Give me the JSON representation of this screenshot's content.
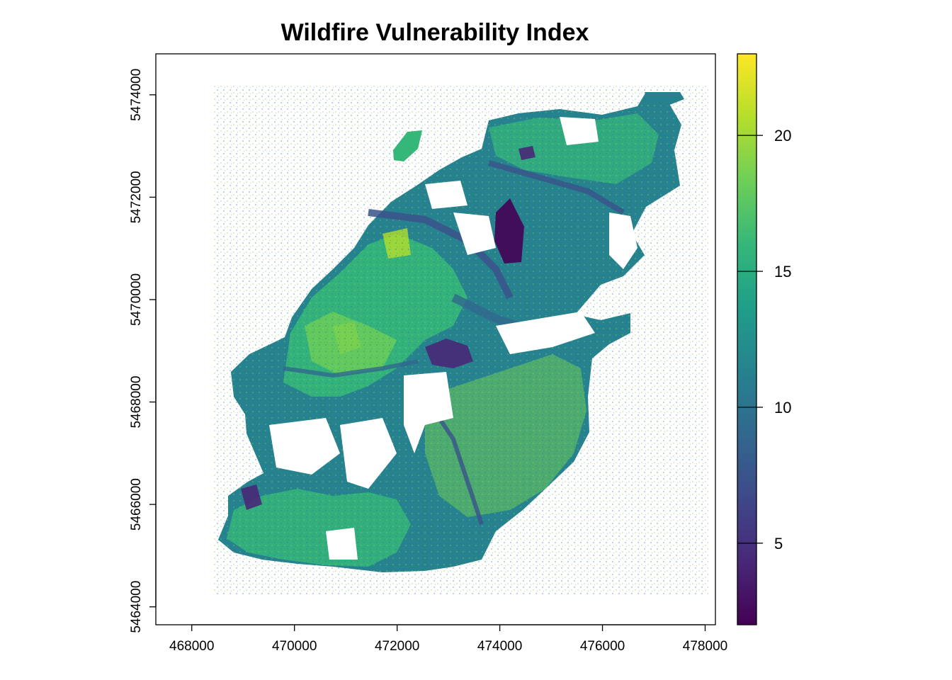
{
  "title": "Wildfire Vulnerability Index",
  "map_extent": {
    "xlim": [
      467300,
      478200
    ],
    "ylim": [
      5463650,
      5474800
    ]
  },
  "x_axis": {
    "ticks": [
      468000,
      470000,
      472000,
      474000,
      476000,
      478000
    ],
    "labels": [
      "468000",
      "470000",
      "472000",
      "474000",
      "476000",
      "478000"
    ]
  },
  "y_axis": {
    "ticks": [
      5464000,
      5466000,
      5468000,
      5470000,
      5472000,
      5474000
    ],
    "labels": [
      "5464000",
      "5466000",
      "5468000",
      "5470000",
      "5472000",
      "5474000"
    ]
  },
  "legend": {
    "range": [
      2,
      23
    ],
    "ticks": [
      5,
      10,
      15,
      20
    ],
    "labels": [
      "5",
      "10",
      "15",
      "20"
    ],
    "colors": [
      "#440154",
      "#482878",
      "#3e4989",
      "#31688e",
      "#26828e",
      "#1f9e89",
      "#35b779",
      "#6ece58",
      "#b5de2b",
      "#fde725"
    ]
  },
  "colors": {
    "deep": "#440154",
    "low": "#3b528b",
    "mid": "#21918c",
    "teal": "#1f9e89",
    "green": "#35b779",
    "bright": "#6ece58",
    "high": "#b5de2b"
  }
}
